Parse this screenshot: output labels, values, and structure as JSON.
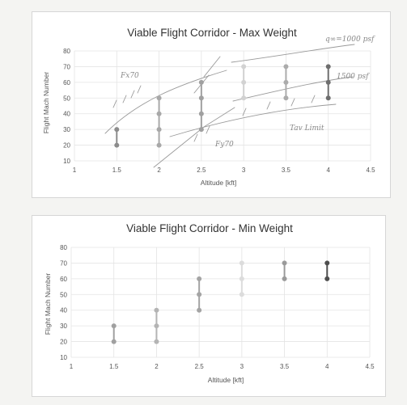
{
  "chart_data": [
    {
      "type": "line",
      "title": "Viable Flight Corridor - Max Weight",
      "xlabel": "Altitude [kft]",
      "ylabel": "Flight Mach Number",
      "xlim": [
        1,
        4.5
      ],
      "ylim": [
        10,
        80
      ],
      "xticks": [
        "1",
        "1.5",
        "2",
        "2.5",
        "3",
        "3.5",
        "4",
        "4.5"
      ],
      "yticks": [
        "10",
        "20",
        "30",
        "40",
        "50",
        "60",
        "70",
        "80"
      ],
      "grid": true,
      "legend": "none",
      "series": [
        {
          "x": 1.5,
          "values": [
            20,
            30
          ],
          "color": "#8c8c8c"
        },
        {
          "x": 2,
          "values": [
            20,
            30,
            40,
            50
          ],
          "color": "#a8a8a8"
        },
        {
          "x": 2.5,
          "values": [
            30,
            40,
            50,
            60
          ],
          "color": "#a0a0a0"
        },
        {
          "x": 3,
          "values": [
            50,
            60,
            70
          ],
          "color": "#d2d2d2"
        },
        {
          "x": 3.5,
          "values": [
            50,
            60,
            70
          ],
          "color": "#ababab"
        },
        {
          "x": 4,
          "values": [
            50,
            60,
            70
          ],
          "color": "#6e6e6e"
        }
      ],
      "annotations": [
        "Fx70",
        "Fy70",
        "q∞=1000 psf",
        "1500 psf",
        "Tav Limit"
      ]
    },
    {
      "type": "line",
      "title": "Viable Flight Corridor - Min Weight",
      "xlabel": "Altitude [kft]",
      "ylabel": "Flight Mach Number",
      "xlim": [
        1,
        4.5
      ],
      "ylim": [
        10,
        80
      ],
      "xticks": [
        "1",
        "1.5",
        "2",
        "2.5",
        "3",
        "3.5",
        "4",
        "4.5"
      ],
      "yticks": [
        "10",
        "20",
        "30",
        "40",
        "50",
        "60",
        "70",
        "80"
      ],
      "grid": true,
      "legend": "none",
      "series": [
        {
          "x": 1.5,
          "values": [
            20,
            30
          ],
          "color": "#a0a0a0"
        },
        {
          "x": 2,
          "values": [
            20,
            30,
            40
          ],
          "color": "#b4b4b4"
        },
        {
          "x": 2.5,
          "values": [
            40,
            50,
            60
          ],
          "color": "#a4a4a4"
        },
        {
          "x": 3,
          "values": [
            50,
            60,
            70
          ],
          "color": "#dcdcdc"
        },
        {
          "x": 3.5,
          "values": [
            60,
            70
          ],
          "color": "#9a9a9a"
        },
        {
          "x": 4,
          "values": [
            60,
            70
          ],
          "color": "#4e4e4e"
        }
      ],
      "annotations": []
    }
  ]
}
